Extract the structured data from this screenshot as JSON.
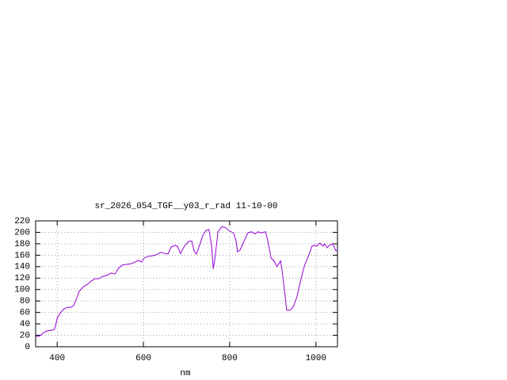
{
  "chart_data": {
    "type": "line",
    "title": "sr_2026_054_TGF__y03_r_rad 11-10-00",
    "x_label": "nm",
    "xlim": [
      350,
      1050
    ],
    "xticks": [
      400,
      600,
      800,
      1000
    ],
    "ylim": [
      0,
      220
    ],
    "yticks": [
      0,
      20,
      40,
      60,
      80,
      100,
      120,
      140,
      160,
      180,
      200,
      220
    ],
    "grid": true,
    "series": [
      {
        "color": "#9400d3",
        "x": [
          350,
          360,
          369,
          378,
          387,
          393,
          396,
          400,
          406,
          415,
          424,
          433,
          439,
          446,
          451,
          461,
          470,
          479,
          488,
          497,
          506,
          516,
          525,
          534,
          543,
          552,
          562,
          571,
          580,
          589,
          595,
          602,
          611,
          620,
          631,
          640,
          650,
          657,
          664,
          672,
          679,
          686,
          695,
          705,
          712,
          718,
          723,
          730,
          738,
          745,
          752,
          758,
          762,
          765,
          773,
          782,
          791,
          800,
          809,
          815,
          818,
          824,
          833,
          842,
          851,
          859,
          866,
          873,
          883,
          888,
          896,
          903,
          910,
          918,
          921,
          929,
          932,
          940,
          947,
          956,
          962,
          969,
          974,
          984,
          991,
          998,
          1002,
          1009,
          1017,
          1020,
          1026,
          1031,
          1039,
          1046,
          1050
        ],
        "values": [
          18,
          19,
          25,
          28,
          29,
          30,
          36,
          50,
          58,
          66,
          69,
          69,
          73,
          87,
          97,
          105,
          109,
          115,
          119,
          119,
          123,
          125,
          129,
          127,
          138,
          143,
          144,
          145,
          148,
          151,
          148,
          155,
          158,
          159,
          161,
          165,
          163,
          162,
          174,
          177,
          176,
          163,
          176,
          184,
          185,
          166,
          162,
          177,
          195,
          203,
          205,
          177,
          136,
          150,
          201,
          210,
          208,
          202,
          199,
          184,
          166,
          169,
          184,
          199,
          201,
          197,
          201,
          199,
          201,
          187,
          155,
          150,
          140,
          150,
          136,
          87,
          64,
          64,
          69,
          87,
          108,
          129,
          143,
          161,
          176,
          177,
          176,
          181,
          176,
          180,
          173,
          177,
          180,
          168,
          169
        ]
      }
    ]
  }
}
